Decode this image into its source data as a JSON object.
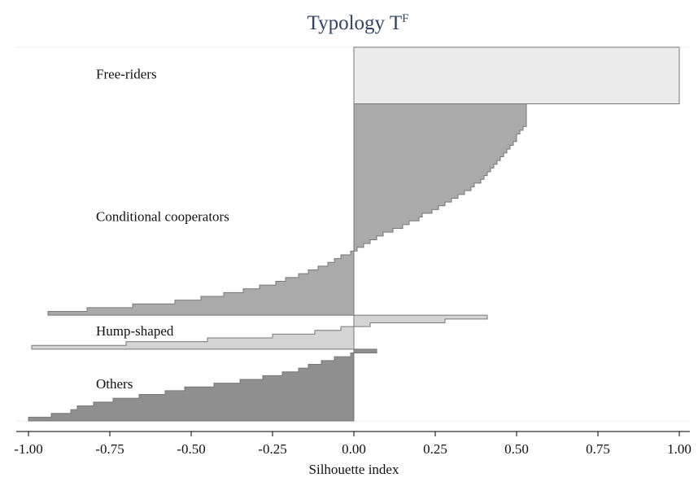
{
  "chart_data": {
    "type": "silhouette",
    "title": "Typology T",
    "title_superscript": "F",
    "xlabel": "Silhouette index",
    "xlim": [
      -1,
      1
    ],
    "xticks": [
      {
        "value": -1,
        "label": "-1.00"
      },
      {
        "value": -0.75,
        "label": "-0.75"
      },
      {
        "value": -0.5,
        "label": "-0.50"
      },
      {
        "value": -0.25,
        "label": "-0.25"
      },
      {
        "value": 0,
        "label": "0.00"
      },
      {
        "value": 0.25,
        "label": "0.25"
      },
      {
        "value": 0.5,
        "label": "0.50"
      },
      {
        "value": 0.75,
        "label": "0.75"
      },
      {
        "value": 1,
        "label": "1.00"
      }
    ],
    "series": [
      {
        "name": "Free-riders",
        "color": "#ebebeb",
        "values": [
          1,
          1,
          1,
          1,
          1,
          1,
          1,
          1,
          1,
          1,
          1,
          1,
          1,
          1,
          1
        ]
      },
      {
        "name": "Conditional cooperators",
        "color": "#aaaaaa",
        "values": [
          0.53,
          0.53,
          0.53,
          0.53,
          0.53,
          0.53,
          0.52,
          0.51,
          0.5,
          0.5,
          0.49,
          0.48,
          0.47,
          0.46,
          0.45,
          0.44,
          0.43,
          0.42,
          0.41,
          0.4,
          0.39,
          0.37,
          0.36,
          0.34,
          0.32,
          0.3,
          0.28,
          0.26,
          0.24,
          0.21,
          0.2,
          0.17,
          0.15,
          0.12,
          0.09,
          0.07,
          0.05,
          0.03,
          0.01,
          -0.01,
          -0.04,
          -0.06,
          -0.08,
          -0.11,
          -0.14,
          -0.17,
          -0.21,
          -0.24,
          -0.29,
          -0.34,
          -0.4,
          -0.47,
          -0.55,
          -0.68,
          -0.82,
          -0.94
        ]
      },
      {
        "name": "Hump-shaped",
        "color": "#d4d4d4",
        "values": [
          0.41,
          0.28,
          0.05,
          -0.04,
          -0.12,
          -0.25,
          -0.45,
          -0.7,
          -0.99
        ]
      },
      {
        "name": "Others",
        "color": "#8f8f8f",
        "values": [
          0.07,
          -0.01,
          -0.06,
          -0.1,
          -0.14,
          -0.17,
          -0.22,
          -0.28,
          -0.35,
          -0.43,
          -0.52,
          -0.58,
          -0.66,
          -0.74,
          -0.8,
          -0.85,
          -0.87,
          -0.93,
          -1
        ]
      }
    ]
  }
}
